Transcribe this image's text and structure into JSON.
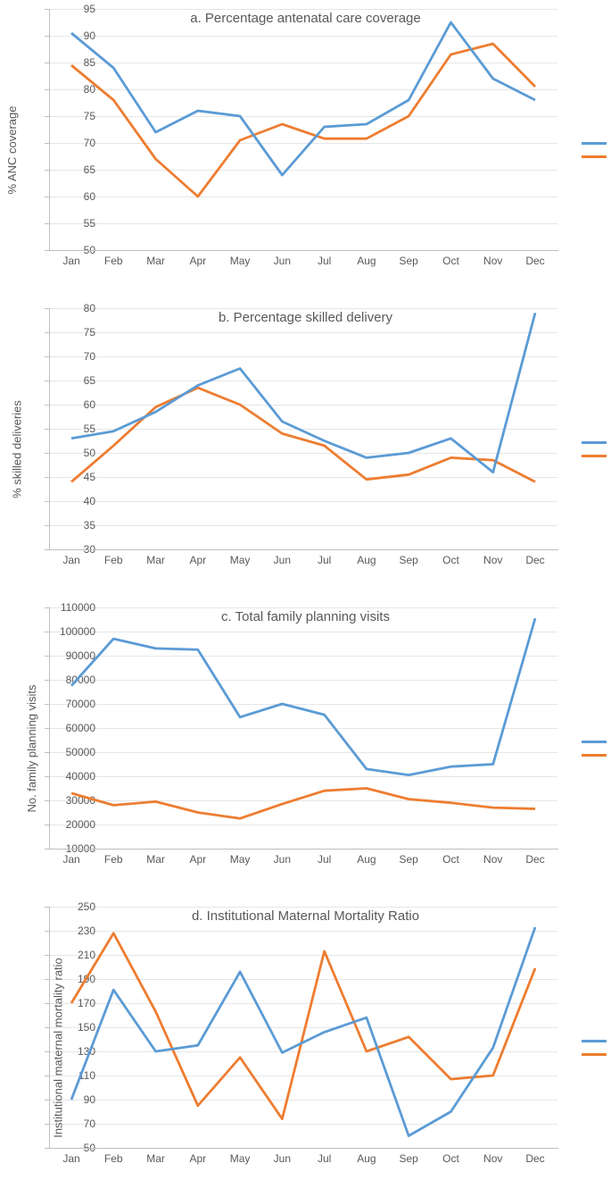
{
  "months": [
    "Jan",
    "Feb",
    "Mar",
    "Apr",
    "May",
    "Jun",
    "Jul",
    "Aug",
    "Sep",
    "Oct",
    "Nov",
    "Dec"
  ],
  "colors": {
    "series1": "#5b9bd5",
    "series2": "#ed7d31",
    "grid": "#e6e6e6",
    "axis": "#bfbfbf",
    "text": "#595959",
    "background": "#ffffff"
  },
  "line_width": 2.8,
  "title_fontsize": 15,
  "label_fontsize": 13,
  "tick_fontsize": 12,
  "charts": [
    {
      "title": "a. Percentage antenatal care coverage",
      "ylabel": "% ANC coverage",
      "ymin": 50,
      "ymax": 95,
      "ystep": 5,
      "series1": [
        90.5,
        84,
        72,
        76,
        75,
        64,
        73,
        73.5,
        78,
        92.5,
        82,
        78
      ],
      "series2": [
        84.5,
        78,
        67,
        60,
        70.5,
        73.5,
        70.8,
        70.8,
        75,
        86.5,
        88.5,
        80.5
      ]
    },
    {
      "title": "b. Percentage skilled delivery",
      "ylabel": "% skilled deliveries",
      "ymin": 30,
      "ymax": 80,
      "ystep": 5,
      "series1": [
        53,
        54.5,
        58.5,
        64,
        67.5,
        56.5,
        52.5,
        49,
        50,
        53,
        46,
        79
      ],
      "series2": [
        44,
        51.5,
        59.5,
        63.5,
        60,
        54,
        51.5,
        44.5,
        45.5,
        49,
        48.5,
        44
      ]
    },
    {
      "title": "c. Total family planning visits",
      "ylabel": "No. family planning visits",
      "ymin": 10000,
      "ymax": 110000,
      "ystep": 10000,
      "series1": [
        77500,
        97000,
        93000,
        92500,
        64500,
        70000,
        65500,
        43000,
        40500,
        44000,
        45000,
        105500
      ],
      "series2": [
        33000,
        28000,
        29500,
        25000,
        22500,
        28500,
        34000,
        35000,
        30500,
        29000,
        27000,
        26500
      ]
    },
    {
      "title": "d. Institutional Maternal Mortality Ratio",
      "ylabel": "Institutional maternal mortality ratio",
      "ymin": 50,
      "ymax": 250,
      "ystep": 20,
      "series1": [
        90,
        181,
        130,
        135,
        196,
        129,
        146,
        158,
        60,
        80,
        133,
        233
      ],
      "series2": [
        170,
        228,
        163,
        85,
        125,
        74,
        213,
        130,
        142,
        107,
        110,
        199
      ]
    }
  ]
}
